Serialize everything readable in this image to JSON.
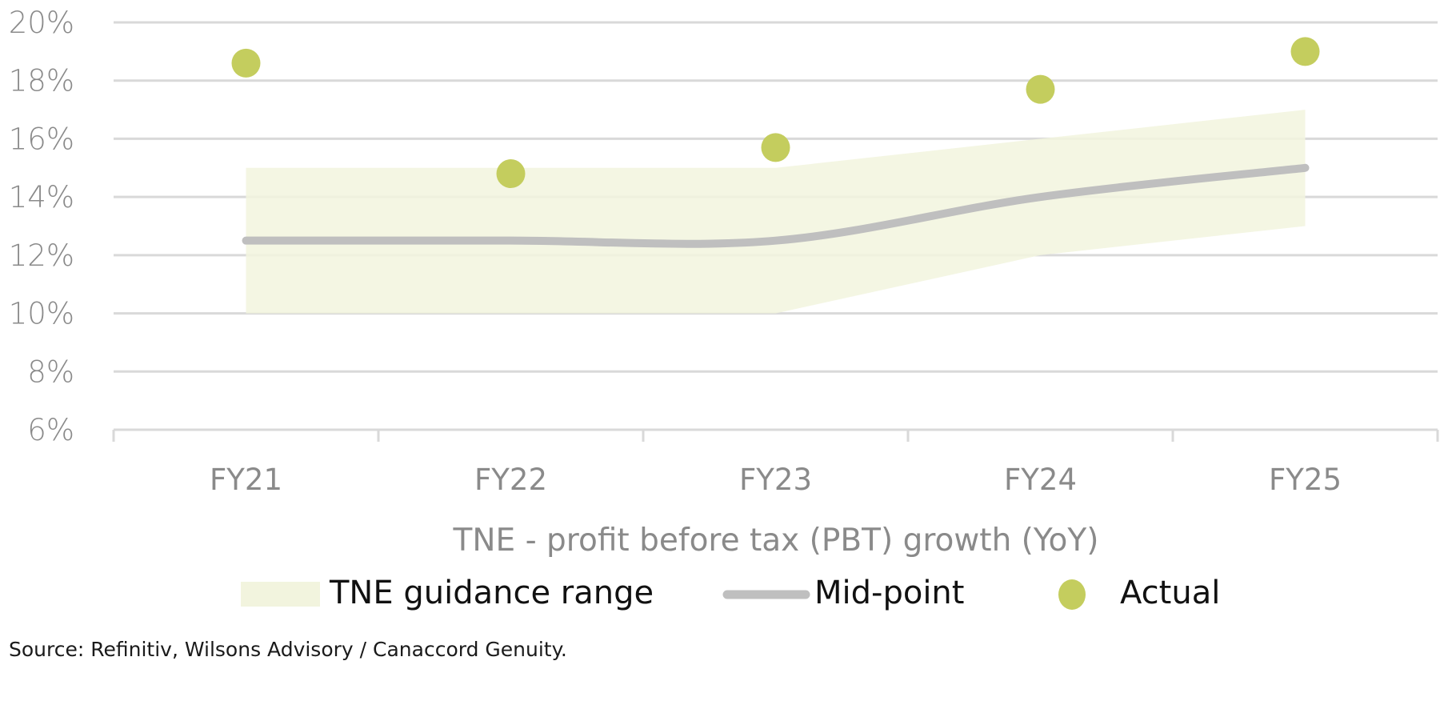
{
  "chart_data": {
    "type": "line",
    "title": "",
    "xlabel": "TNE - profit before tax (PBT) growth (YoY)",
    "ylabel": "",
    "categories": [
      "FY21",
      "FY22",
      "FY23",
      "FY24",
      "FY25"
    ],
    "ylim": [
      6,
      20
    ],
    "yticks": [
      6,
      8,
      10,
      12,
      14,
      16,
      18,
      20
    ],
    "ytick_labels": [
      "6%",
      "8%",
      "10%",
      "12%",
      "14%",
      "16%",
      "18%",
      "20%"
    ],
    "grid": true,
    "legend_position": "bottom",
    "series": [
      {
        "name": "TNE guidance range",
        "kind": "band",
        "low": [
          10,
          10,
          10,
          12,
          13
        ],
        "high": [
          15,
          15,
          15,
          16,
          17
        ],
        "color": "#f2f4de"
      },
      {
        "name": "Mid-point",
        "kind": "smooth-line",
        "values": [
          12.5,
          12.5,
          12.5,
          14,
          15
        ],
        "color": "#bfbfbf"
      },
      {
        "name": "Actual",
        "kind": "scatter",
        "values": [
          18.6,
          14.8,
          15.7,
          17.7,
          19.0
        ],
        "color": "#c4cd5e"
      }
    ]
  },
  "legend": {
    "items": [
      {
        "label": "TNE guidance range"
      },
      {
        "label": "Mid-point"
      },
      {
        "label": "Actual"
      }
    ]
  },
  "source": "Source: Refinitiv, Wilsons Advisory / Canaccord Genuity."
}
